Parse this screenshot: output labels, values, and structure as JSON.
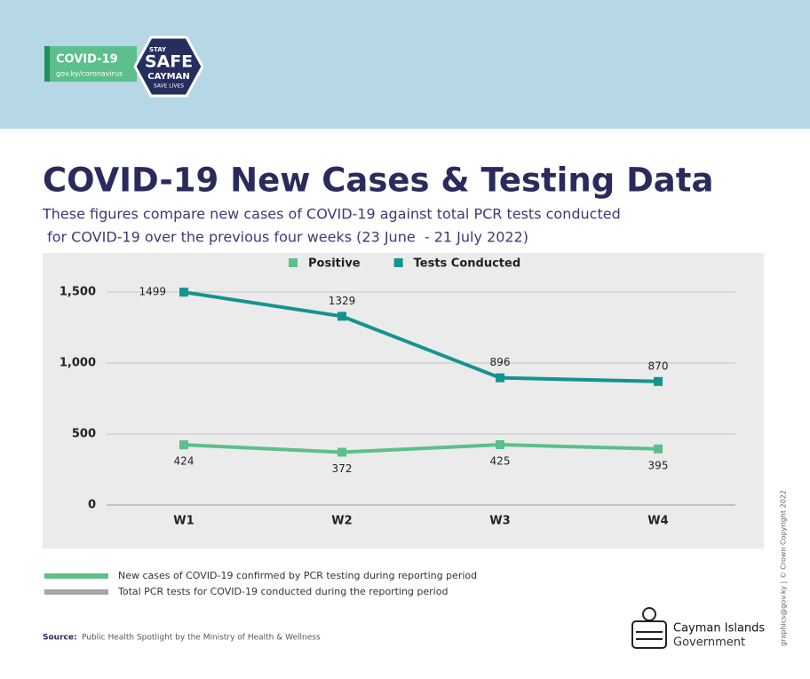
{
  "header": {
    "badge_title": "COVID-19",
    "badge_url": "gov.ky/coronavirus",
    "logo_top": "STAY",
    "logo_main": "SAFE",
    "logo_sub": "CAYMAN",
    "logo_bottom": "SAVE LIVES"
  },
  "chart_data": {
    "type": "line",
    "title": "COVID-19 New Cases & Testing Data",
    "subtitle": [
      "These figures compare new cases of COVID-19 against total PCR tests conducted",
      " for COVID-19 over the previous four weeks (23 June  - 21 July 2022)"
    ],
    "categories": [
      "W1",
      "W2",
      "W3",
      "W4"
    ],
    "series": [
      {
        "name": "Positive",
        "color": "#5cbf8c",
        "values": [
          424,
          372,
          425,
          395
        ]
      },
      {
        "name": "Tests Conducted",
        "color": "#14948f",
        "values": [
          1499,
          1329,
          896,
          870
        ]
      }
    ],
    "ylim": [
      0,
      1500
    ],
    "yticks": [
      0,
      500,
      {
        "value": 1000,
        "label": "1,000"
      },
      {
        "value": 1500,
        "label": "1,500"
      }
    ],
    "grid": true,
    "legend_position": "top"
  },
  "notes": [
    {
      "text": "New cases  of COVID-19 confirmed by PCR testing  during reporting period",
      "color": "#5cbf8c"
    },
    {
      "text": "Total PCR tests for COVID-19 conducted during the reporting period",
      "color": "#a6a6a6"
    }
  ],
  "source": {
    "label": "Source:",
    "text": "Public Health Spotlight by the Ministry of Health & Wellness"
  },
  "copyright": "graphics@gov.ky | © Crown Copyright 2022",
  "government": {
    "line1": "Cayman Islands",
    "line2": "Government"
  }
}
